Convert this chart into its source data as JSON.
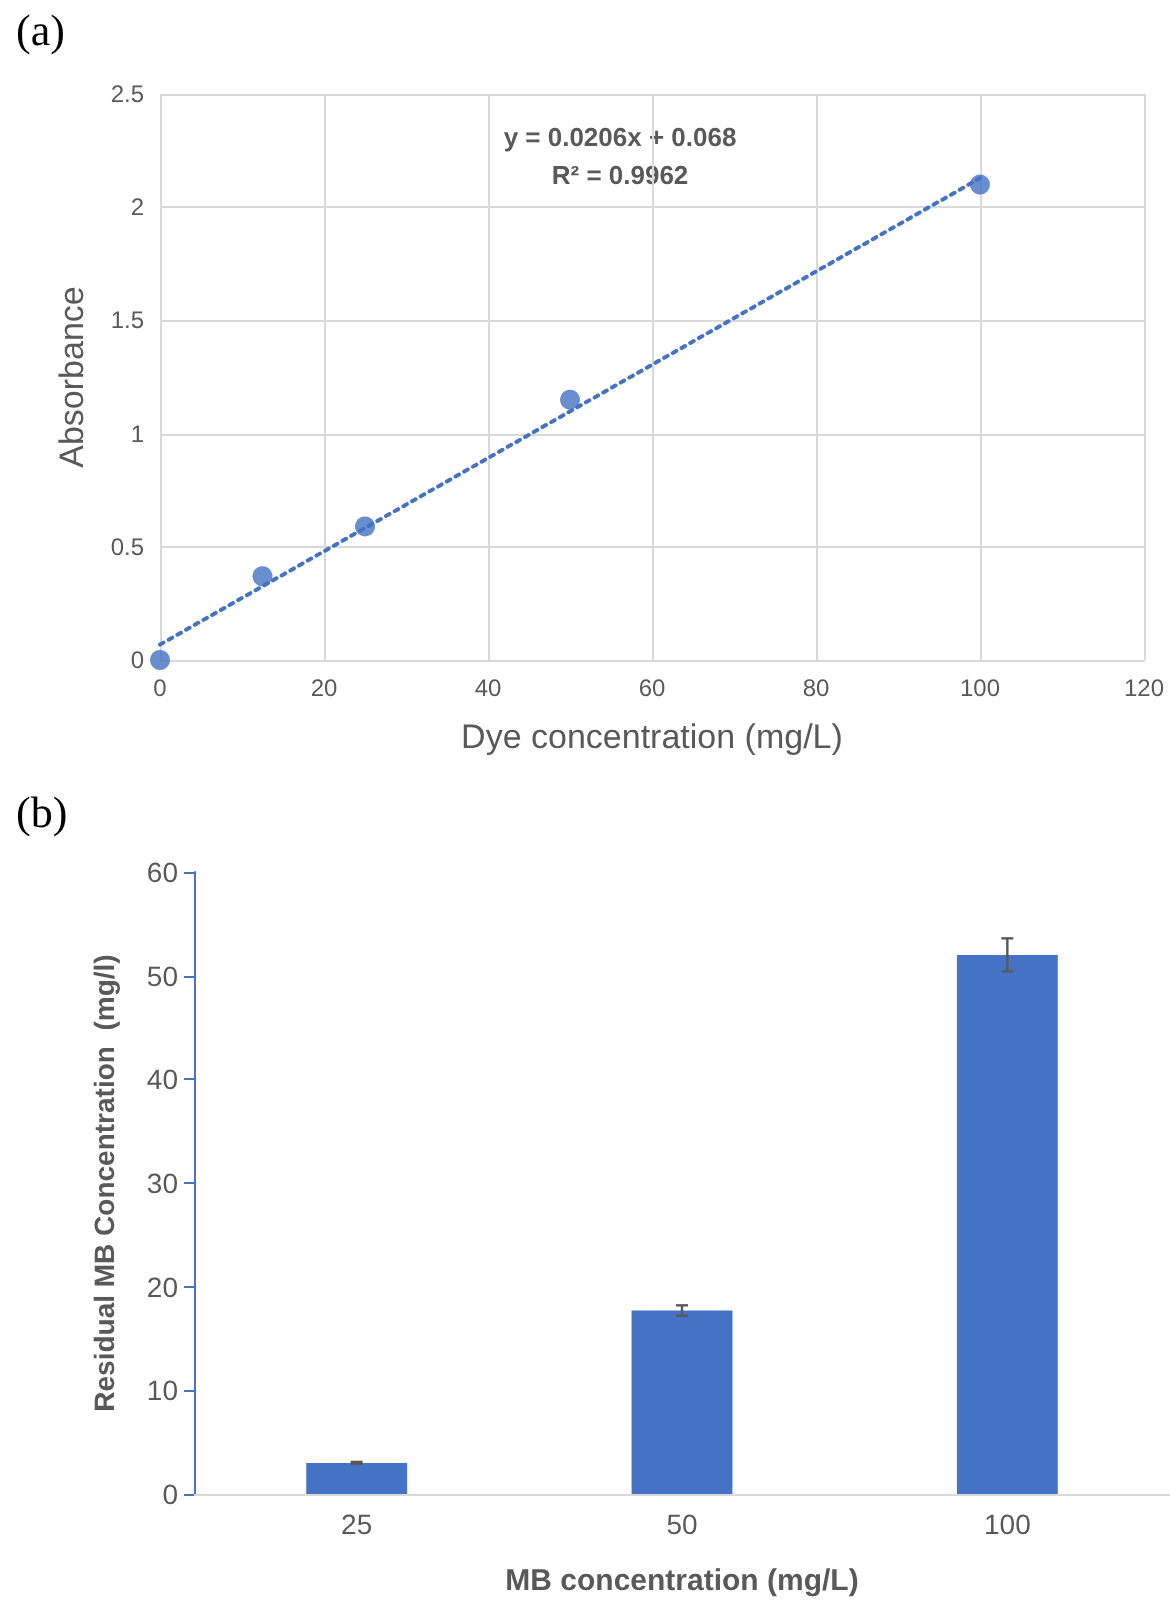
{
  "chart_data": [
    {
      "type": "scatter",
      "title": "(a)",
      "xlabel": "Dye concentration (mg/L)",
      "ylabel": "Absorbance",
      "xlim": [
        0,
        120
      ],
      "xticks": [
        0,
        20,
        40,
        60,
        80,
        100,
        120
      ],
      "ylim": [
        0,
        2.5
      ],
      "yticks": [
        0,
        0.5,
        1,
        1.5,
        2,
        2.5
      ],
      "grid": true,
      "marker": "circle",
      "annotations": [
        "y = 0.0206x + 0.068",
        "R² = 0.9962"
      ],
      "series": [
        {
          "type": "scatter",
          "color": "#4472c4",
          "x": [
            0,
            12.5,
            25,
            50,
            100
          ],
          "values": [
            0,
            0.37,
            0.59,
            1.15,
            2.1
          ]
        },
        {
          "type": "line",
          "color": "#4472c4",
          "line_style": "dotted",
          "marker": "none",
          "x": [
            0,
            100
          ],
          "values": [
            0.068,
            2.128
          ]
        }
      ]
    },
    {
      "type": "bar",
      "title": "(b)",
      "xlabel": "MB concentration (mg/L)",
      "ylabel": "Residual MB Concentration  (mg/l)",
      "categories": [
        "25",
        "50",
        "100"
      ],
      "ylim": [
        0,
        60
      ],
      "yticks": [
        0,
        10,
        20,
        30,
        40,
        50,
        60
      ],
      "grid": false,
      "series": [
        {
          "color": "#4472c4",
          "values": [
            3,
            17.7,
            52
          ],
          "errors": [
            0.1,
            0.5,
            1.6
          ]
        }
      ]
    }
  ]
}
